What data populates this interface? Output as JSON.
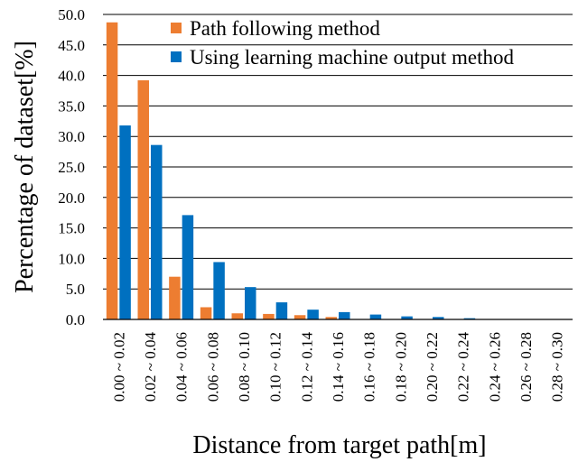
{
  "chart_data": {
    "type": "bar",
    "title": "",
    "xlabel": "Distance from target path[m]",
    "ylabel": "Percentage of dataset[%]",
    "ylim": [
      0,
      50
    ],
    "yticks": [
      "0.0",
      "5.0",
      "10.0",
      "15.0",
      "20.0",
      "25.0",
      "30.0",
      "35.0",
      "40.0",
      "45.0",
      "50.0"
    ],
    "grid": "horizontal",
    "legend_position": "top-right",
    "categories": [
      "0.00 ~ 0.02",
      "0.02 ~ 0.04",
      "0.04 ~ 0.06",
      "0.06 ~ 0.08",
      "0.08 ~ 0.10",
      "0.10 ~ 0.12",
      "0.12 ~ 0.14",
      "0.14 ~ 0.16",
      "0.16 ~ 0.18",
      "0.18 ~ 0.20",
      "0.20 ~ 0.22",
      "0.22 ~ 0.24",
      "0.24 ~ 0.26",
      "0.26 ~ 0.28",
      "0.28 ~ 0.30"
    ],
    "series": [
      {
        "name": "Path following method",
        "color": "#ED7D31",
        "values": [
          48.7,
          39.2,
          7.0,
          2.0,
          1.0,
          0.9,
          0.7,
          0.4,
          0.0,
          0.0,
          0.0,
          0.0,
          0.0,
          0.0,
          0.0
        ]
      },
      {
        "name": "Using learning machine output method",
        "color": "#0070C0",
        "values": [
          31.8,
          28.6,
          17.1,
          9.4,
          5.3,
          2.8,
          1.6,
          1.2,
          0.8,
          0.5,
          0.4,
          0.2,
          0.0,
          0.0,
          0.0
        ]
      }
    ]
  }
}
